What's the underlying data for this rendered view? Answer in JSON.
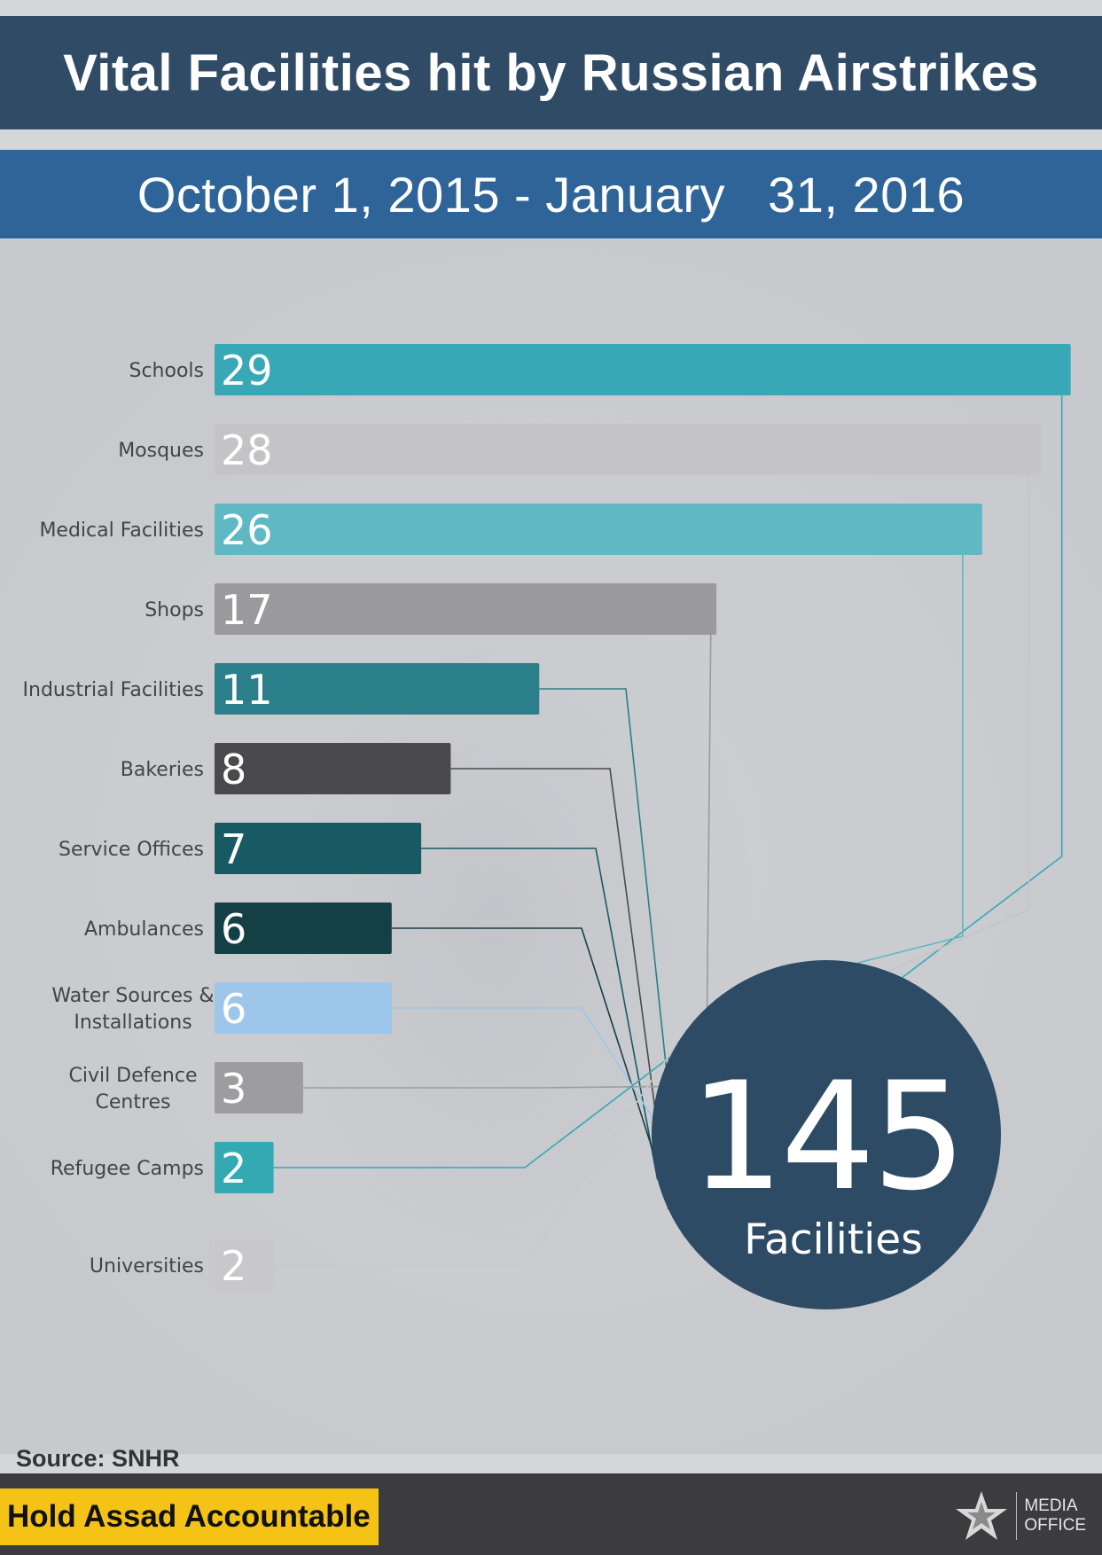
{
  "title": "Vital Facilities hit by Russian Airstrikes",
  "date_range": "October 1, 2015 - January   31, 2016",
  "total": {
    "value": "145",
    "label": "Facilities"
  },
  "source": "Source: SNHR",
  "footer": {
    "slogan": "Hold Assad Accountable",
    "logo_line1": "MEDIA",
    "logo_line2": "OFFICE"
  },
  "chart_data": {
    "type": "bar",
    "orientation": "horizontal",
    "categories": [
      "Schools",
      "Mosques",
      "Medical Facilities",
      "Shops",
      "Industrial Facilities",
      "Bakeries",
      "Service Offices",
      "Ambulances",
      "Water Sources & Installations",
      "Civil Defence Centres",
      "Refugee Camps",
      "Universities"
    ],
    "values": [
      29,
      28,
      26,
      17,
      11,
      8,
      7,
      6,
      6,
      3,
      2,
      2
    ],
    "colors": [
      "#38a8b7",
      "#c4c4c6",
      "#5fb8c3",
      "#9a9a9c",
      "#2a7f8a",
      "#4a4a4c",
      "#175a63",
      "#143f45",
      "#9cc7ea",
      "#9d9d9f",
      "#33a9b3",
      "#c8c8ca"
    ],
    "total": 145
  }
}
